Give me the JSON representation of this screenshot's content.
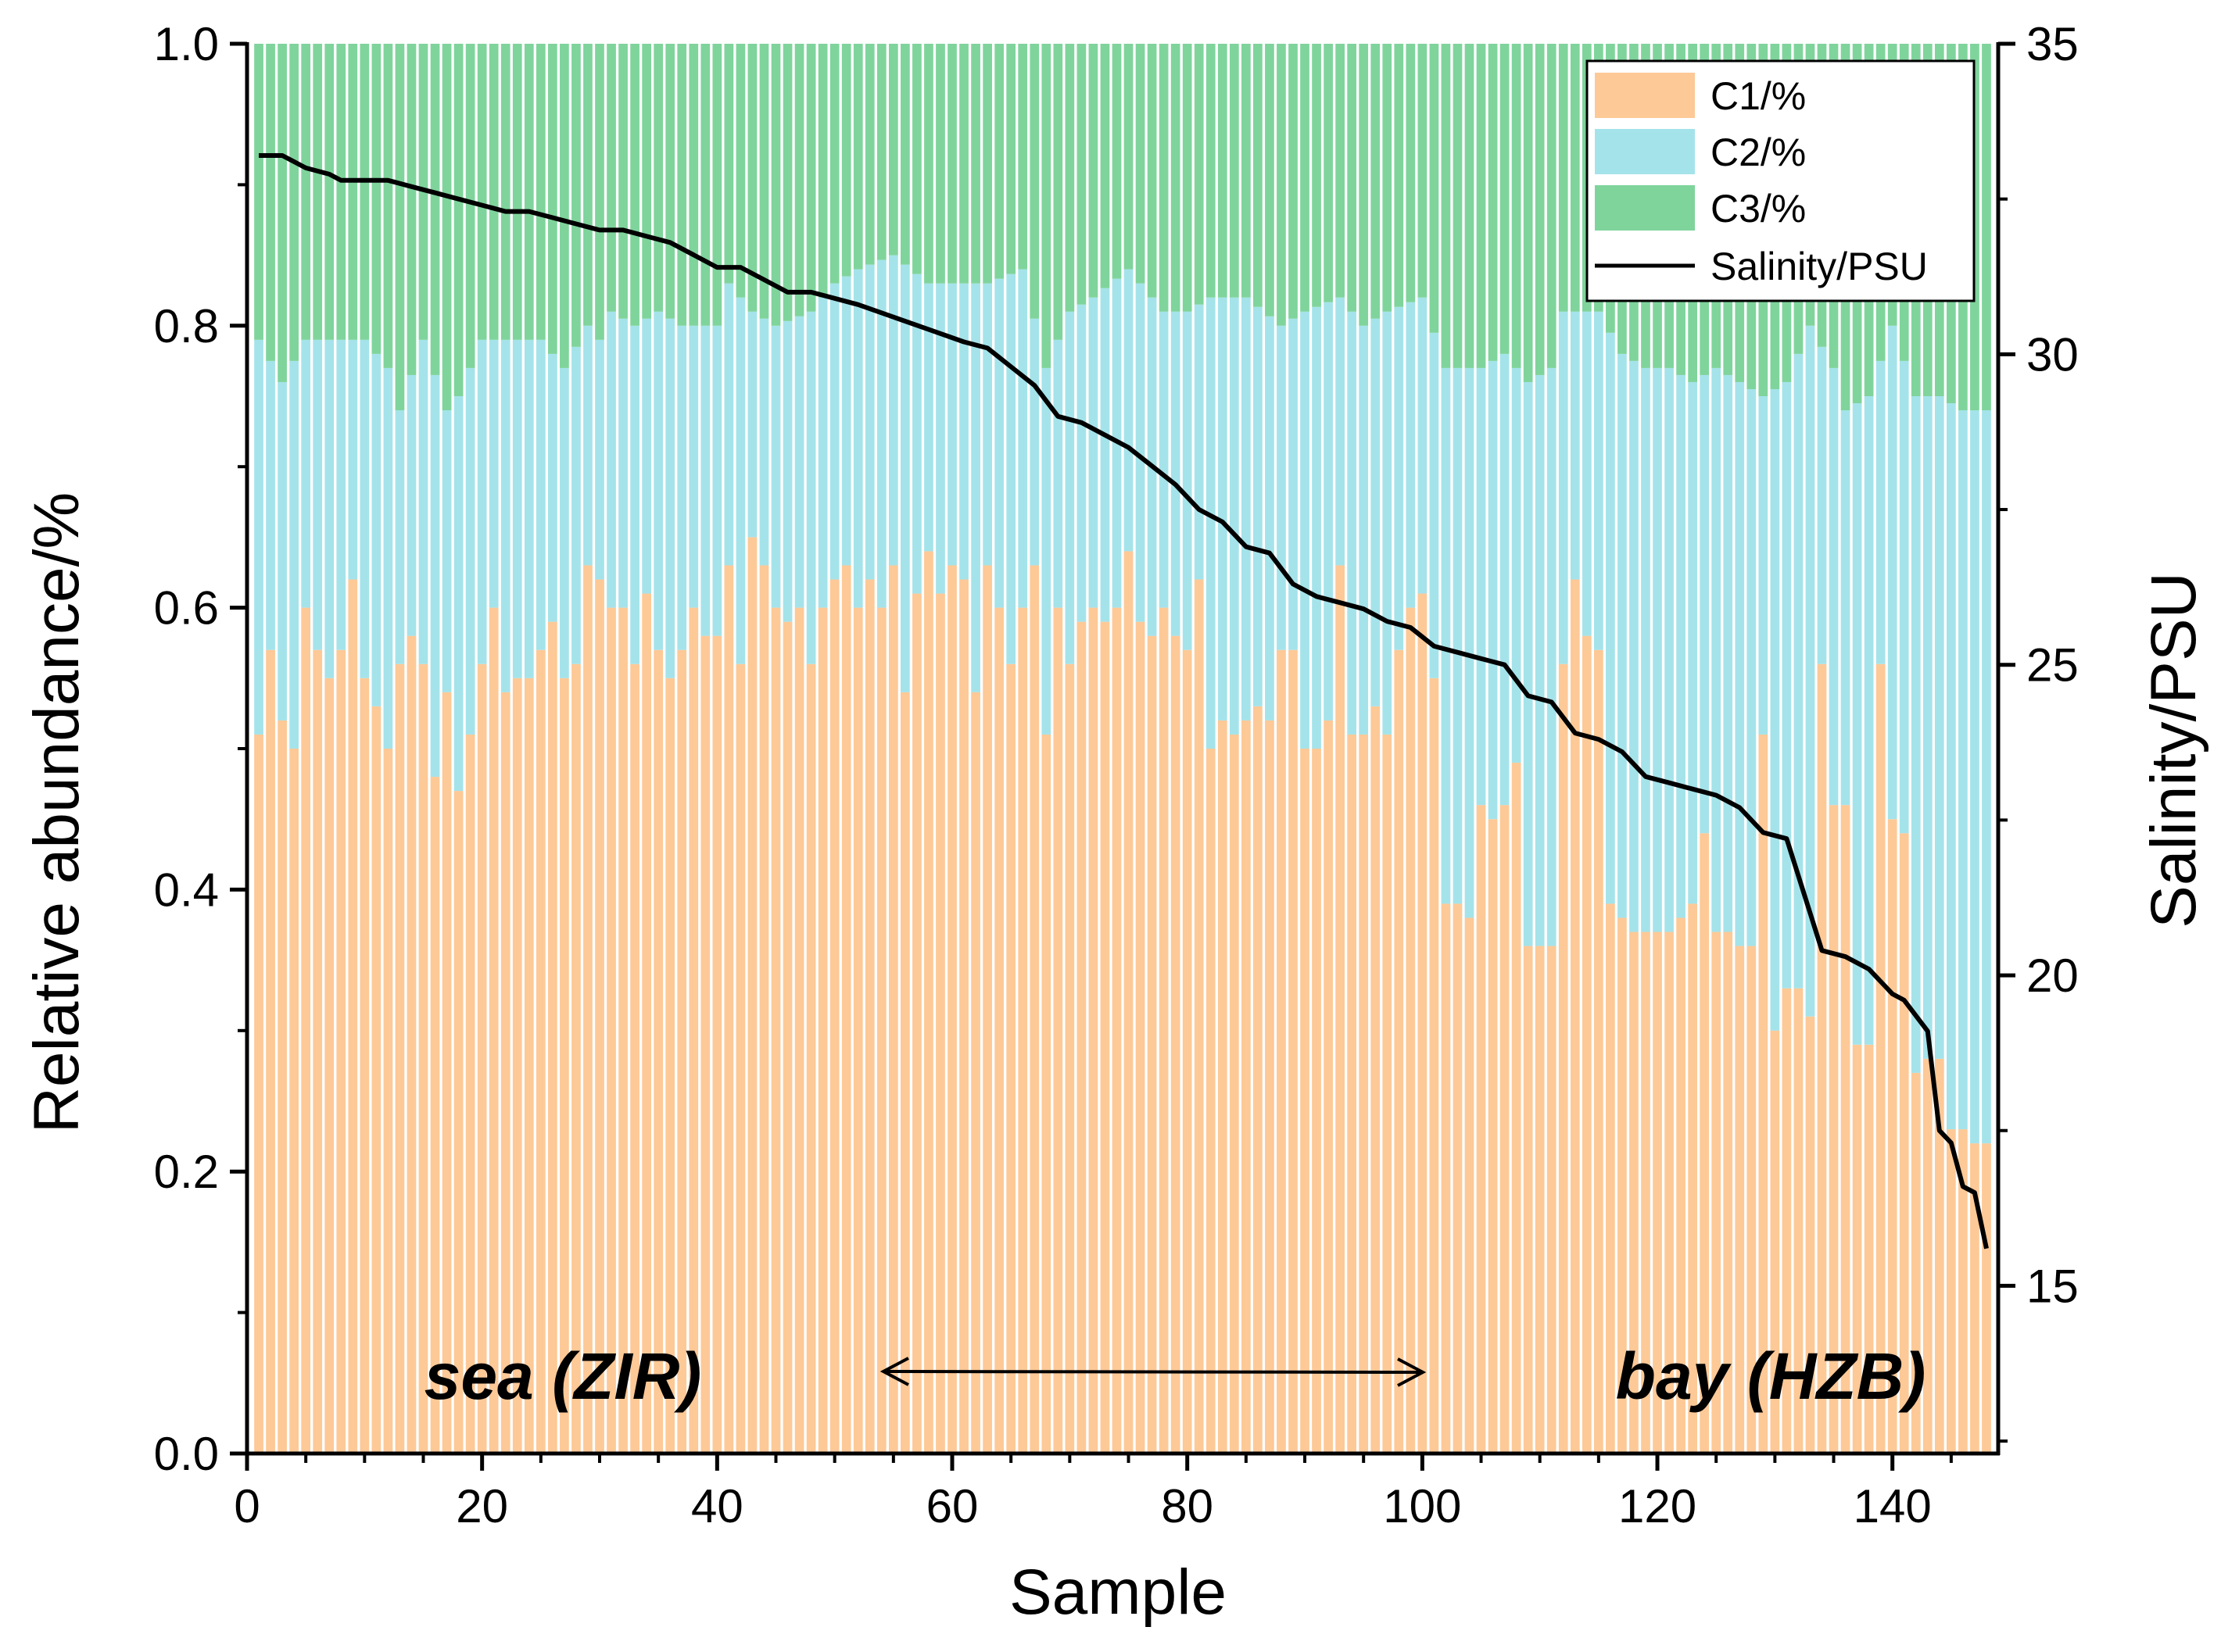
{
  "chart_data": {
    "type": "bar",
    "stacked": true,
    "xlabel": "Sample",
    "ylabel": "Relative abundance/%",
    "y2label": "Salinity/PSU",
    "xlim": [
      0,
      149
    ],
    "ylim": [
      0,
      1.0
    ],
    "y2lim": [
      12.3,
      35
    ],
    "xticks": [
      0,
      20,
      40,
      60,
      80,
      100,
      120,
      140
    ],
    "yticks": [
      "0.0",
      "0.2",
      "0.4",
      "0.6",
      "0.8",
      "1.0"
    ],
    "y2ticks": [
      15,
      20,
      25,
      30,
      35
    ],
    "colors": {
      "C1": "#fdc997",
      "C2": "#a5e3ea",
      "C3": "#7fd49c",
      "salinity": "#000000"
    },
    "legend": {
      "position": "top-right",
      "entries": [
        "C1/%",
        "C2/%",
        "C3/%",
        "Salinity/PSU"
      ]
    },
    "annotations": {
      "left": "sea (ZIR)",
      "right": "bay (HZB)"
    },
    "c1_anchors": [
      [
        1,
        0.51
      ],
      [
        2,
        0.57
      ],
      [
        3,
        0.52
      ],
      [
        4,
        0.5
      ],
      [
        5,
        0.6
      ],
      [
        6,
        0.57
      ],
      [
        7,
        0.55
      ],
      [
        8,
        0.57
      ],
      [
        9,
        0.62
      ],
      [
        10,
        0.55
      ],
      [
        11,
        0.53
      ],
      [
        12,
        0.5
      ],
      [
        13,
        0.56
      ],
      [
        14,
        0.58
      ],
      [
        15,
        0.56
      ],
      [
        16,
        0.48
      ],
      [
        17,
        0.54
      ],
      [
        18,
        0.47
      ],
      [
        19,
        0.51
      ],
      [
        20,
        0.56
      ],
      [
        21,
        0.6
      ],
      [
        22,
        0.54
      ],
      [
        23,
        0.55
      ],
      [
        24,
        0.55
      ],
      [
        25,
        0.57
      ],
      [
        26,
        0.59
      ],
      [
        27,
        0.55
      ],
      [
        28,
        0.56
      ],
      [
        29,
        0.63
      ],
      [
        30,
        0.62
      ],
      [
        31,
        0.6
      ],
      [
        32,
        0.6
      ],
      [
        33,
        0.56
      ],
      [
        34,
        0.61
      ],
      [
        35,
        0.57
      ],
      [
        36,
        0.55
      ],
      [
        37,
        0.57
      ],
      [
        38,
        0.6
      ],
      [
        39,
        0.58
      ],
      [
        40,
        0.58
      ],
      [
        41,
        0.63
      ],
      [
        42,
        0.56
      ],
      [
        43,
        0.65
      ],
      [
        44,
        0.63
      ],
      [
        45,
        0.6
      ],
      [
        46,
        0.59
      ],
      [
        47,
        0.6
      ],
      [
        48,
        0.56
      ],
      [
        49,
        0.6
      ],
      [
        50,
        0.62
      ],
      [
        51,
        0.63
      ],
      [
        52,
        0.6
      ],
      [
        53,
        0.62
      ],
      [
        54,
        0.6
      ],
      [
        55,
        0.63
      ],
      [
        56,
        0.54
      ],
      [
        57,
        0.61
      ],
      [
        58,
        0.64
      ],
      [
        59,
        0.61
      ],
      [
        60,
        0.63
      ],
      [
        61,
        0.62
      ],
      [
        62,
        0.54
      ],
      [
        63,
        0.63
      ],
      [
        64,
        0.6
      ],
      [
        65,
        0.56
      ],
      [
        66,
        0.6
      ],
      [
        67,
        0.63
      ],
      [
        68,
        0.51
      ],
      [
        69,
        0.6
      ],
      [
        70,
        0.56
      ],
      [
        71,
        0.59
      ],
      [
        72,
        0.6
      ],
      [
        73,
        0.59
      ],
      [
        74,
        0.6
      ],
      [
        75,
        0.64
      ],
      [
        76,
        0.59
      ],
      [
        77,
        0.58
      ],
      [
        78,
        0.6
      ],
      [
        79,
        0.58
      ],
      [
        80,
        0.57
      ],
      [
        81,
        0.62
      ],
      [
        82,
        0.5
      ],
      [
        83,
        0.52
      ],
      [
        84,
        0.51
      ],
      [
        85,
        0.52
      ],
      [
        86,
        0.53
      ],
      [
        87,
        0.52
      ],
      [
        88,
        0.57
      ],
      [
        89,
        0.57
      ],
      [
        90,
        0.5
      ],
      [
        91,
        0.5
      ],
      [
        92,
        0.52
      ],
      [
        93,
        0.63
      ],
      [
        94,
        0.51
      ],
      [
        95,
        0.51
      ],
      [
        96,
        0.53
      ],
      [
        97,
        0.51
      ],
      [
        98,
        0.57
      ],
      [
        99,
        0.6
      ],
      [
        100,
        0.61
      ],
      [
        101,
        0.55
      ],
      [
        102,
        0.39
      ],
      [
        103,
        0.39
      ],
      [
        104,
        0.38
      ],
      [
        105,
        0.46
      ],
      [
        106,
        0.45
      ],
      [
        107,
        0.46
      ],
      [
        108,
        0.49
      ],
      [
        109,
        0.36
      ],
      [
        110,
        0.36
      ],
      [
        111,
        0.36
      ],
      [
        112,
        0.56
      ],
      [
        113,
        0.62
      ],
      [
        114,
        0.58
      ],
      [
        115,
        0.57
      ],
      [
        116,
        0.39
      ],
      [
        117,
        0.38
      ],
      [
        118,
        0.37
      ],
      [
        119,
        0.37
      ],
      [
        120,
        0.37
      ],
      [
        121,
        0.37
      ],
      [
        122,
        0.38
      ],
      [
        123,
        0.39
      ],
      [
        124,
        0.44
      ],
      [
        125,
        0.37
      ],
      [
        126,
        0.37
      ],
      [
        127,
        0.36
      ],
      [
        128,
        0.36
      ],
      [
        129,
        0.51
      ],
      [
        130,
        0.3
      ],
      [
        131,
        0.33
      ],
      [
        132,
        0.33
      ],
      [
        133,
        0.31
      ],
      [
        134,
        0.56
      ],
      [
        135,
        0.46
      ],
      [
        136,
        0.46
      ],
      [
        137,
        0.29
      ],
      [
        138,
        0.29
      ],
      [
        139,
        0.56
      ],
      [
        140,
        0.45
      ],
      [
        141,
        0.44
      ],
      [
        142,
        0.27
      ],
      [
        143,
        0.28
      ],
      [
        144,
        0.28
      ],
      [
        145,
        0.23
      ],
      [
        146,
        0.23
      ],
      [
        147,
        0.22
      ],
      [
        148,
        0.22
      ]
    ],
    "c2_top_anchors": [
      [
        1,
        0.79
      ],
      [
        3,
        0.76
      ],
      [
        5,
        0.79
      ],
      [
        8,
        0.79
      ],
      [
        10,
        0.79
      ],
      [
        12,
        0.77
      ],
      [
        13,
        0.74
      ],
      [
        15,
        0.79
      ],
      [
        17,
        0.74
      ],
      [
        18,
        0.75
      ],
      [
        20,
        0.79
      ],
      [
        23,
        0.79
      ],
      [
        25,
        0.79
      ],
      [
        27,
        0.77
      ],
      [
        29,
        0.8
      ],
      [
        30,
        0.79
      ],
      [
        31,
        0.81
      ],
      [
        33,
        0.8
      ],
      [
        35,
        0.81
      ],
      [
        37,
        0.8
      ],
      [
        40,
        0.8
      ],
      [
        41,
        0.83
      ],
      [
        43,
        0.81
      ],
      [
        45,
        0.8
      ],
      [
        48,
        0.81
      ],
      [
        50,
        0.83
      ],
      [
        52,
        0.84
      ],
      [
        55,
        0.85
      ],
      [
        58,
        0.83
      ],
      [
        60,
        0.83
      ],
      [
        63,
        0.83
      ],
      [
        66,
        0.84
      ],
      [
        68,
        0.77
      ],
      [
        70,
        0.81
      ],
      [
        72,
        0.82
      ],
      [
        75,
        0.84
      ],
      [
        78,
        0.81
      ],
      [
        80,
        0.81
      ],
      [
        82,
        0.82
      ],
      [
        85,
        0.82
      ],
      [
        88,
        0.8
      ],
      [
        90,
        0.81
      ],
      [
        93,
        0.82
      ],
      [
        95,
        0.8
      ],
      [
        97,
        0.81
      ],
      [
        100,
        0.82
      ],
      [
        102,
        0.77
      ],
      [
        105,
        0.77
      ],
      [
        107,
        0.78
      ],
      [
        109,
        0.76
      ],
      [
        111,
        0.77
      ],
      [
        112,
        0.81
      ],
      [
        115,
        0.81
      ],
      [
        117,
        0.78
      ],
      [
        119,
        0.77
      ],
      [
        121,
        0.77
      ],
      [
        123,
        0.76
      ],
      [
        125,
        0.77
      ],
      [
        127,
        0.76
      ],
      [
        129,
        0.75
      ],
      [
        131,
        0.76
      ],
      [
        133,
        0.8
      ],
      [
        135,
        0.77
      ],
      [
        136,
        0.74
      ],
      [
        138,
        0.75
      ],
      [
        140,
        0.8
      ],
      [
        142,
        0.75
      ],
      [
        144,
        0.75
      ],
      [
        146,
        0.74
      ],
      [
        148,
        0.74
      ]
    ],
    "salinity": [
      [
        1,
        33.2
      ],
      [
        3,
        33.2
      ],
      [
        5,
        33.0
      ],
      [
        7,
        32.9
      ],
      [
        8,
        32.8
      ],
      [
        10,
        32.8
      ],
      [
        12,
        32.8
      ],
      [
        14,
        32.7
      ],
      [
        16,
        32.6
      ],
      [
        18,
        32.5
      ],
      [
        20,
        32.4
      ],
      [
        22,
        32.3
      ],
      [
        24,
        32.3
      ],
      [
        26,
        32.2
      ],
      [
        28,
        32.1
      ],
      [
        30,
        32.0
      ],
      [
        32,
        32.0
      ],
      [
        34,
        31.9
      ],
      [
        36,
        31.8
      ],
      [
        38,
        31.6
      ],
      [
        40,
        31.4
      ],
      [
        42,
        31.4
      ],
      [
        44,
        31.2
      ],
      [
        46,
        31.0
      ],
      [
        48,
        31.0
      ],
      [
        50,
        30.9
      ],
      [
        52,
        30.8
      ],
      [
        55,
        30.6
      ],
      [
        58,
        30.4
      ],
      [
        61,
        30.2
      ],
      [
        63,
        30.1
      ],
      [
        65,
        29.8
      ],
      [
        67,
        29.5
      ],
      [
        69,
        29.0
      ],
      [
        71,
        28.9
      ],
      [
        73,
        28.7
      ],
      [
        75,
        28.5
      ],
      [
        77,
        28.2
      ],
      [
        79,
        27.9
      ],
      [
        81,
        27.5
      ],
      [
        83,
        27.3
      ],
      [
        85,
        26.9
      ],
      [
        87,
        26.8
      ],
      [
        89,
        26.3
      ],
      [
        91,
        26.1
      ],
      [
        93,
        26.0
      ],
      [
        95,
        25.9
      ],
      [
        97,
        25.7
      ],
      [
        99,
        25.6
      ],
      [
        101,
        25.3
      ],
      [
        103,
        25.2
      ],
      [
        105,
        25.1
      ],
      [
        107,
        25.0
      ],
      [
        109,
        24.5
      ],
      [
        111,
        24.4
      ],
      [
        113,
        23.9
      ],
      [
        115,
        23.8
      ],
      [
        117,
        23.6
      ],
      [
        119,
        23.2
      ],
      [
        121,
        23.1
      ],
      [
        123,
        23.0
      ],
      [
        125,
        22.9
      ],
      [
        127,
        22.7
      ],
      [
        129,
        22.3
      ],
      [
        131,
        22.2
      ],
      [
        133,
        21.0
      ],
      [
        134,
        20.4
      ],
      [
        136,
        20.3
      ],
      [
        138,
        20.1
      ],
      [
        140,
        19.7
      ],
      [
        141,
        19.6
      ],
      [
        143,
        19.1
      ],
      [
        144,
        17.5
      ],
      [
        145,
        17.3
      ],
      [
        146,
        16.6
      ],
      [
        147,
        16.5
      ],
      [
        148,
        15.6
      ]
    ]
  }
}
